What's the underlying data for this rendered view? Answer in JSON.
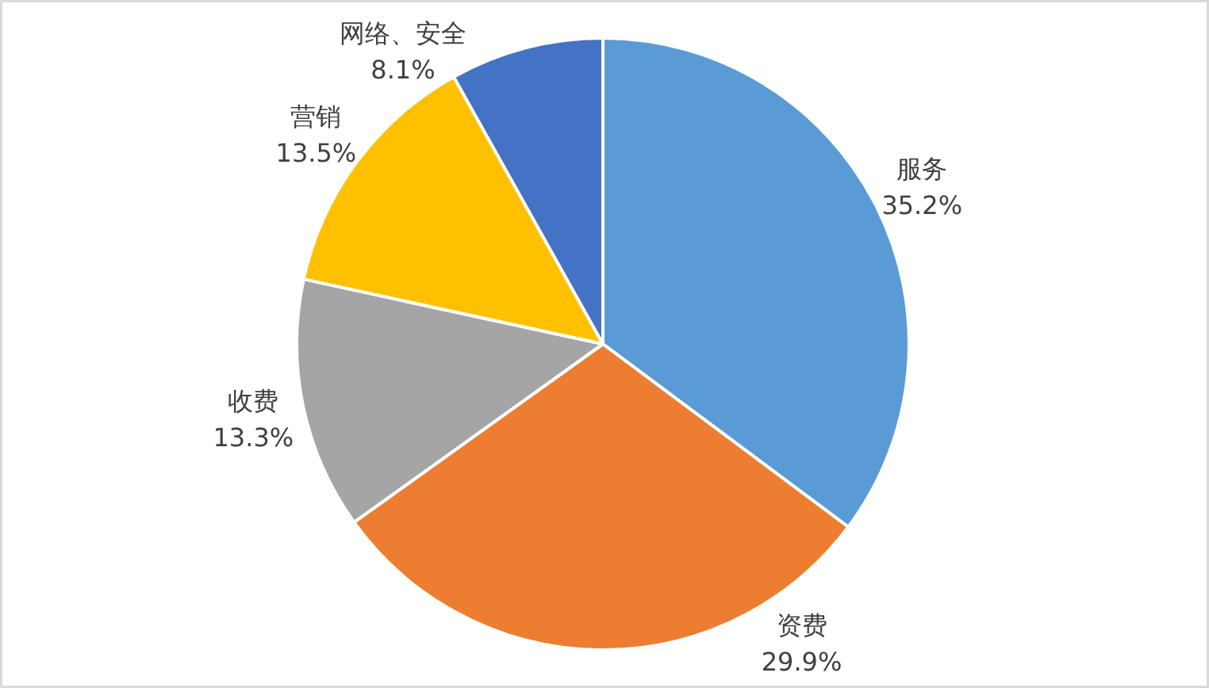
{
  "chart_data": {
    "type": "pie",
    "categories": [
      "服务",
      "资费",
      "收费",
      "营销",
      "网络、安全"
    ],
    "values": [
      35.2,
      29.9,
      13.3,
      13.5,
      8.1
    ],
    "colors": [
      "#5b9bd5",
      "#ed7d31",
      "#a5a5a5",
      "#ffc000",
      "#4472c4"
    ],
    "value_labels": [
      "35.2%",
      "29.9%",
      "13.3%",
      "13.5%",
      "8.1%"
    ]
  }
}
